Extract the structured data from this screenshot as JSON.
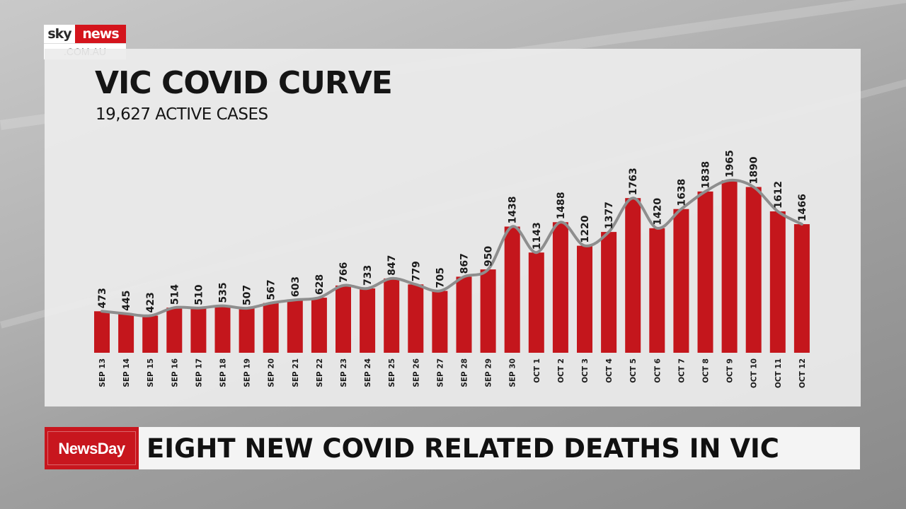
{
  "brand": {
    "logo_left": "sky",
    "logo_right": "news",
    "logo_domain": ".COM.AU"
  },
  "chart_data": {
    "type": "bar",
    "title": "VIC COVID CURVE",
    "subtitle": "19,627 ACTIVE CASES",
    "categories": [
      "SEP 13",
      "SEP 14",
      "SEP 15",
      "SEP 16",
      "SEP 17",
      "SEP 18",
      "SEP 19",
      "SEP 20",
      "SEP 21",
      "SEP 22",
      "SEP 23",
      "SEP 24",
      "SEP 25",
      "SEP 26",
      "SEP 27",
      "SEP 28",
      "SEP 29",
      "SEP 30",
      "OCT 1",
      "OCT 2",
      "OCT 3",
      "OCT 4",
      "OCT 5",
      "OCT 6",
      "OCT 7",
      "OCT 8",
      "OCT 9",
      "OCT 10",
      "OCT 11",
      "OCT 12"
    ],
    "values": [
      473,
      445,
      423,
      514,
      510,
      535,
      507,
      567,
      603,
      628,
      766,
      733,
      847,
      779,
      705,
      867,
      950,
      1438,
      1143,
      1488,
      1220,
      1377,
      1763,
      1420,
      1638,
      1838,
      1965,
      1890,
      1612,
      1466
    ],
    "overlay": "smoothed trend line",
    "ylim": [
      0,
      2000
    ],
    "grid": false,
    "legend": "none",
    "colors": {
      "bar": "#c4161c",
      "line": "#8e8e8e",
      "text": "#1a1a1a"
    }
  },
  "lower_third": {
    "show": "NewsDay",
    "headline": "EIGHT NEW COVID RELATED DEATHS IN VIC"
  }
}
